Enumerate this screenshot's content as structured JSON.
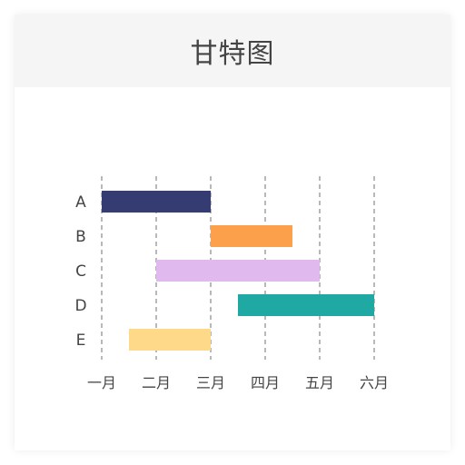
{
  "card": {
    "title": "甘特图"
  },
  "chart_data": {
    "type": "bar",
    "subtype": "gantt",
    "title": "甘特图",
    "x_ticks": [
      "一月",
      "二月",
      "三月",
      "四月",
      "五月",
      "六月"
    ],
    "categories": [
      "A",
      "B",
      "C",
      "D",
      "E"
    ],
    "tasks": [
      {
        "label": "A",
        "start": 0,
        "end": 2,
        "color": "#343c72"
      },
      {
        "label": "B",
        "start": 2,
        "end": 3.5,
        "color": "#fda04c"
      },
      {
        "label": "C",
        "start": 1,
        "end": 4,
        "color": "#e0baee"
      },
      {
        "label": "D",
        "start": 2.5,
        "end": 5,
        "color": "#20a8a2"
      },
      {
        "label": "E",
        "start": 0.5,
        "end": 2,
        "color": "#ffd98a"
      }
    ],
    "xlim": [
      0,
      5
    ],
    "grid": "vertical-dashed",
    "legend": "none"
  },
  "colors": {
    "header_bg": "#f5f5f5",
    "grid": "#888888",
    "text": "#444444"
  }
}
